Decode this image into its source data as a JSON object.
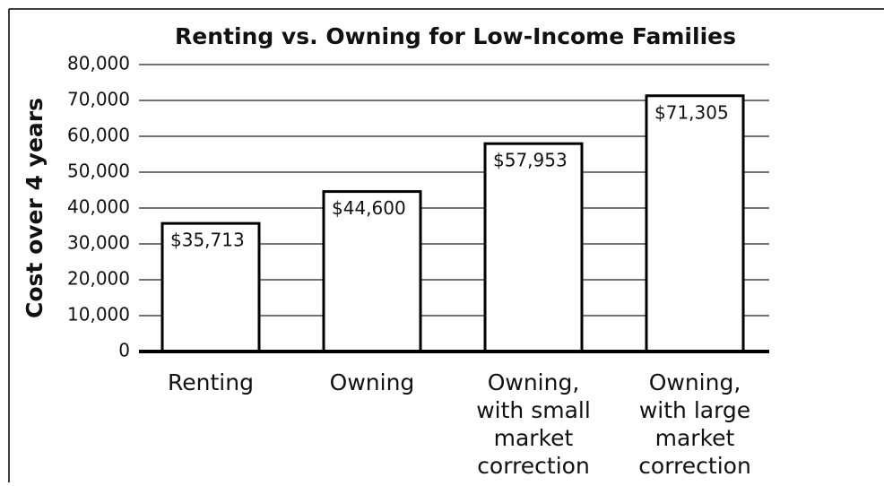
{
  "chart_data": {
    "type": "bar",
    "title": "Renting vs. Owning for Low-Income Families",
    "y_label": "Cost over 4 years",
    "categories": [
      "Renting",
      "Owning",
      "Owning,\nwith small\nmarket\ncorrection",
      "Owning,\nwith large\nmarket\ncorrection"
    ],
    "values": [
      35713,
      44600,
      57953,
      71305
    ],
    "value_labels": [
      "$35,713",
      "$44,600",
      "$57,953",
      "$71,305"
    ],
    "color": "#ffffff",
    "ylim": [
      0,
      80000
    ],
    "yticks": [
      0,
      {
        "value": 10000,
        "label": "10,000"
      },
      {
        "value": 20000,
        "label": "20,000"
      },
      {
        "value": 30000,
        "label": "30,000"
      },
      {
        "value": 40000,
        "label": "40,000"
      },
      {
        "value": 50000,
        "label": "50,000"
      },
      {
        "value": 60000,
        "label": "60,000"
      },
      {
        "value": 70000,
        "label": "70,000"
      },
      {
        "value": 80000,
        "label": "80,000"
      }
    ],
    "grid": true
  }
}
